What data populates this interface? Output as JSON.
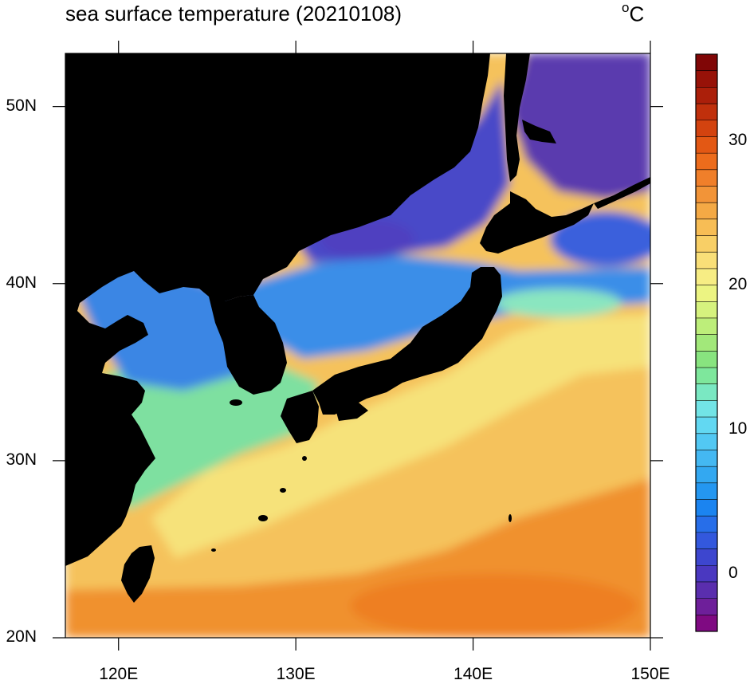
{
  "title": "sea surface temperature (20210108)",
  "unit_deg": "o",
  "unit_c": "C",
  "map": {
    "lon_range": [
      117,
      150
    ],
    "lat_range": [
      20,
      53
    ],
    "lat_ticks": [
      {
        "value": 50,
        "label": "50N"
      },
      {
        "value": 40,
        "label": "40N"
      },
      {
        "value": 30,
        "label": "30N"
      },
      {
        "value": 20,
        "label": "20N"
      }
    ],
    "lon_ticks": [
      {
        "value": 120,
        "label": "120E"
      },
      {
        "value": 130,
        "label": "130E"
      },
      {
        "value": 140,
        "label": "140E"
      },
      {
        "value": 150,
        "label": "150E"
      }
    ],
    "land_color": "#000000"
  },
  "colorbar": {
    "min": -4,
    "max": 36,
    "ticks": [
      {
        "value": 30,
        "label": "30"
      },
      {
        "value": 20,
        "label": "20"
      },
      {
        "value": 10,
        "label": "10"
      },
      {
        "value": 0,
        "label": "0"
      }
    ],
    "colors": [
      "#7f0a82",
      "#6e1f9a",
      "#5a2eae",
      "#4a38c0",
      "#3d46cf",
      "#3358dd",
      "#276ee9",
      "#1b84f0",
      "#2497f1",
      "#33a8f1",
      "#44b8f2",
      "#52c8f3",
      "#62d8f2",
      "#72e4e6",
      "#7ae8c2",
      "#7ee79c",
      "#88e47f",
      "#a2e87a",
      "#bdee7a",
      "#d6f27e",
      "#ecf482",
      "#f7ed84",
      "#f9df78",
      "#f8cf66",
      "#f7bd55",
      "#f4a945",
      "#f29438",
      "#f07f2a",
      "#ed6c1c",
      "#e35814",
      "#d3430f",
      "#c0300c",
      "#ab1f0a",
      "#971208",
      "#800606"
    ]
  },
  "regions": [
    {
      "name": "okhotsk-sea",
      "color": "#5a3aae"
    },
    {
      "name": "japan-sea-north",
      "color": "#4a48c8"
    },
    {
      "name": "japan-sea-south",
      "color": "#3a8ee8"
    },
    {
      "name": "yellow-sea",
      "color": "#3a86e4"
    },
    {
      "name": "east-china-sea",
      "color": "#7ee0a0"
    },
    {
      "name": "kuroshio",
      "color": "#f6e27a"
    },
    {
      "name": "pacific-subtropical",
      "color": "#f5c25c"
    },
    {
      "name": "pacific-south",
      "color": "#f0912e"
    }
  ]
}
